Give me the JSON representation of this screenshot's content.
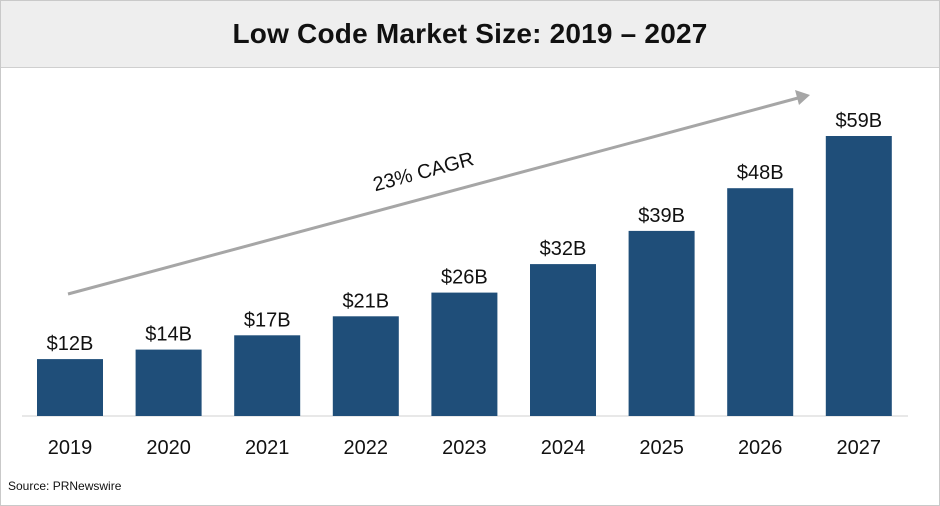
{
  "chart_data": {
    "type": "bar",
    "title": "Low Code Market Size: 2019 – 2027",
    "categories": [
      "2019",
      "2020",
      "2021",
      "2022",
      "2023",
      "2024",
      "2025",
      "2026",
      "2027"
    ],
    "values": [
      12,
      14,
      17,
      21,
      26,
      32,
      39,
      48,
      59
    ],
    "data_labels": [
      "$12B",
      "$14B",
      "$17B",
      "$21B",
      "$26B",
      "$32B",
      "$39B",
      "$48B",
      "$59B"
    ],
    "annotation": "23% CAGR",
    "xlabel": "",
    "ylabel": "",
    "ylim": [
      0,
      59
    ],
    "grid": false,
    "bar_color": "#1f4e79",
    "arrow_color": "#a6a6a6"
  },
  "source": "Source: PRNewswire"
}
